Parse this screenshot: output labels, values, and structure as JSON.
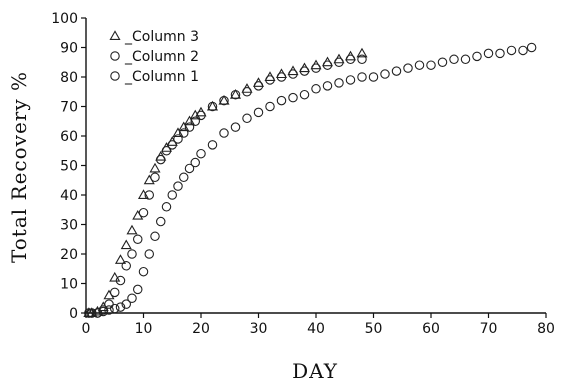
{
  "chart_data": {
    "type": "scatter",
    "title": "",
    "xlabel": "DAY",
    "ylabel": "Total Recovery %",
    "xlim": [
      0,
      80
    ],
    "ylim": [
      0,
      100
    ],
    "xticks": [
      "0",
      "10",
      "20",
      "30",
      "40",
      "50",
      "60",
      "70",
      "80"
    ],
    "yticks": [
      "0",
      "10",
      "20",
      "30",
      "40",
      "50",
      "60",
      "70",
      "80",
      "90",
      "100"
    ],
    "grid": false,
    "legend": "top-left",
    "series": [
      {
        "name": "_Column 3",
        "marker": "triangle",
        "points": [
          [
            0.5,
            0
          ],
          [
            1,
            0
          ],
          [
            2,
            0.5
          ],
          [
            3,
            2
          ],
          [
            4,
            6
          ],
          [
            5,
            12
          ],
          [
            6,
            18
          ],
          [
            7,
            23
          ],
          [
            8,
            28
          ],
          [
            9,
            33
          ],
          [
            10,
            40
          ],
          [
            11,
            45
          ],
          [
            12,
            49
          ],
          [
            13,
            53
          ],
          [
            14,
            56
          ],
          [
            15,
            58
          ],
          [
            16,
            61
          ],
          [
            17,
            63
          ],
          [
            18,
            65
          ],
          [
            19,
            67
          ],
          [
            20,
            68
          ],
          [
            22,
            70
          ],
          [
            24,
            72
          ],
          [
            26,
            74
          ],
          [
            28,
            76
          ],
          [
            30,
            78
          ],
          [
            32,
            80
          ],
          [
            34,
            81
          ],
          [
            36,
            82
          ],
          [
            38,
            83
          ],
          [
            40,
            84
          ],
          [
            42,
            85
          ],
          [
            44,
            86
          ],
          [
            46,
            87
          ],
          [
            48,
            88
          ]
        ]
      },
      {
        "name": "_Column 2",
        "marker": "circle",
        "points": [
          [
            0.5,
            0
          ],
          [
            1,
            0
          ],
          [
            2,
            0
          ],
          [
            3,
            1
          ],
          [
            4,
            3
          ],
          [
            5,
            7
          ],
          [
            6,
            11
          ],
          [
            7,
            16
          ],
          [
            8,
            20
          ],
          [
            9,
            25
          ],
          [
            10,
            34
          ],
          [
            11,
            40
          ],
          [
            12,
            46
          ],
          [
            13,
            52
          ],
          [
            14,
            55
          ],
          [
            15,
            57
          ],
          [
            16,
            59
          ],
          [
            17,
            61
          ],
          [
            18,
            63
          ],
          [
            19,
            65
          ],
          [
            20,
            67
          ],
          [
            22,
            70
          ],
          [
            24,
            72
          ],
          [
            26,
            74
          ],
          [
            28,
            75
          ],
          [
            30,
            77
          ],
          [
            32,
            79
          ],
          [
            34,
            80
          ],
          [
            36,
            81
          ],
          [
            38,
            82
          ],
          [
            40,
            83
          ],
          [
            42,
            84
          ],
          [
            44,
            85
          ],
          [
            46,
            86
          ],
          [
            48,
            86
          ]
        ]
      },
      {
        "name": "_Column 1",
        "marker": "circle",
        "points": [
          [
            0.5,
            0
          ],
          [
            1,
            0
          ],
          [
            2,
            0
          ],
          [
            3,
            0.5
          ],
          [
            4,
            1
          ],
          [
            5,
            1.5
          ],
          [
            6,
            2
          ],
          [
            7,
            3
          ],
          [
            8,
            5
          ],
          [
            9,
            8
          ],
          [
            10,
            14
          ],
          [
            11,
            20
          ],
          [
            12,
            26
          ],
          [
            13,
            31
          ],
          [
            14,
            36
          ],
          [
            15,
            40
          ],
          [
            16,
            43
          ],
          [
            17,
            46
          ],
          [
            18,
            49
          ],
          [
            19,
            51
          ],
          [
            20,
            54
          ],
          [
            22,
            57
          ],
          [
            24,
            61
          ],
          [
            26,
            63
          ],
          [
            28,
            66
          ],
          [
            30,
            68
          ],
          [
            32,
            70
          ],
          [
            34,
            72
          ],
          [
            36,
            73
          ],
          [
            38,
            74
          ],
          [
            40,
            76
          ],
          [
            42,
            77
          ],
          [
            44,
            78
          ],
          [
            46,
            79
          ],
          [
            48,
            80
          ],
          [
            50,
            80
          ],
          [
            52,
            81
          ],
          [
            54,
            82
          ],
          [
            56,
            83
          ],
          [
            58,
            84
          ],
          [
            60,
            84
          ],
          [
            62,
            85
          ],
          [
            64,
            86
          ],
          [
            66,
            86
          ],
          [
            68,
            87
          ],
          [
            70,
            88
          ],
          [
            72,
            88
          ],
          [
            74,
            89
          ],
          [
            76,
            89
          ],
          [
            77.5,
            90
          ]
        ]
      }
    ]
  }
}
